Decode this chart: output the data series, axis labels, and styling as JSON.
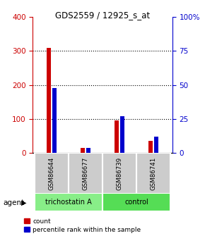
{
  "title": "GDS2559 / 12925_s_at",
  "samples": [
    "GSM86644",
    "GSM86677",
    "GSM86739",
    "GSM86741"
  ],
  "red_values": [
    310,
    15,
    95,
    35
  ],
  "blue_values_pct": [
    48,
    4,
    27,
    12
  ],
  "left_ylim": [
    0,
    400
  ],
  "right_ylim": [
    0,
    100
  ],
  "left_yticks": [
    0,
    100,
    200,
    300,
    400
  ],
  "right_yticks": [
    0,
    25,
    50,
    75,
    100
  ],
  "right_yticklabels": [
    "0",
    "25",
    "50",
    "75",
    "100%"
  ],
  "groups": [
    {
      "label": "trichostatin A",
      "sample_indices": [
        0,
        1
      ],
      "color": "#88ee88"
    },
    {
      "label": "control",
      "sample_indices": [
        2,
        3
      ],
      "color": "#55dd55"
    }
  ],
  "agent_label": "agent",
  "bar_width": 0.12,
  "bar_gap": 0.04,
  "red_color": "#cc0000",
  "blue_color": "#0000cc",
  "left_tick_color": "#cc0000",
  "right_tick_color": "#0000cc",
  "sample_box_color": "#cccccc",
  "legend_red_label": "count",
  "legend_blue_label": "percentile rank within the sample",
  "figsize": [
    2.9,
    3.45
  ],
  "dpi": 100
}
